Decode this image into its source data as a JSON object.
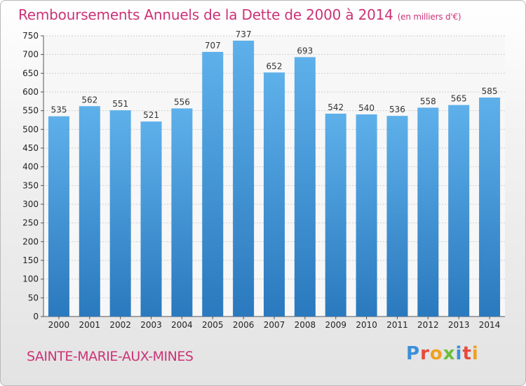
{
  "title": "Remboursements Annuels de la Dette de 2000 à 2014",
  "unit": "(en milliers d'€)",
  "city": "SAINTE-MARIE-AUX-MINES",
  "logo": {
    "letters": [
      "P",
      "r",
      "o",
      "x",
      "i",
      "t",
      "i"
    ],
    "colors": [
      "#3a8fd9",
      "#e64a3c",
      "#f0a020",
      "#6cbf3a",
      "#3a8fd9",
      "#e64a3c",
      "#f0a020"
    ]
  },
  "colors": {
    "bar_top": "#5eb0ea",
    "bar_bottom": "#2a79be",
    "title": "#cc3377"
  },
  "chart_data": {
    "type": "bar",
    "title": "Remboursements Annuels de la Dette de 2000 à 2014",
    "categories": [
      "2000",
      "2001",
      "2002",
      "2003",
      "2004",
      "2005",
      "2006",
      "2007",
      "2008",
      "2009",
      "2010",
      "2011",
      "2012",
      "2013",
      "2014"
    ],
    "values": [
      535,
      562,
      551,
      521,
      556,
      707,
      737,
      652,
      693,
      542,
      540,
      536,
      558,
      565,
      585
    ],
    "ylim": [
      0,
      750
    ],
    "yticks": [
      0,
      50,
      100,
      150,
      200,
      250,
      300,
      350,
      400,
      450,
      500,
      550,
      600,
      650,
      700,
      750
    ],
    "grid": true
  }
}
